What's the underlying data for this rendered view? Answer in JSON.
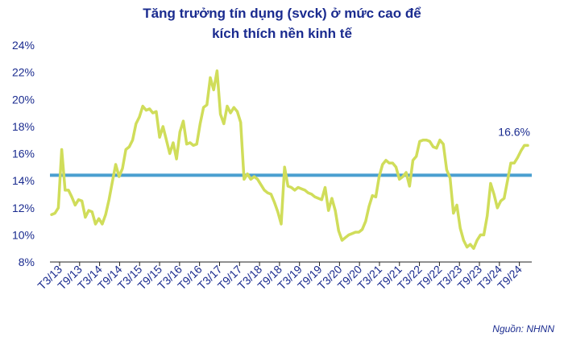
{
  "chart_data": {
    "type": "line",
    "title": "Tăng trưởng tín dụng (svck) ở mức cao để",
    "subtitle": "kích thích nền kinh tế",
    "xlabel": "",
    "ylabel": "",
    "ylim": [
      8,
      24
    ],
    "y_ticks": [
      "8%",
      "10%",
      "12%",
      "14%",
      "16%",
      "18%",
      "20%",
      "22%",
      "24%"
    ],
    "x_tick_labels": [
      "T3/13",
      "T9/13",
      "T3/14",
      "T9/14",
      "T3/15",
      "T9/15",
      "T3/16",
      "T9/16",
      "T3/17",
      "T9/17",
      "T3/18",
      "T9/18",
      "T3/19",
      "T9/19",
      "T3/20",
      "T9/20",
      "T3/21",
      "T9/21",
      "T3/22",
      "T9/22",
      "T3/23",
      "T9/23",
      "T3/24",
      "T9/24"
    ],
    "grid": false,
    "reference_line": {
      "value": 14.4,
      "color": "#4a9fd0"
    },
    "series_color": "#d0dd5a",
    "end_label": "16.6%",
    "series": [
      {
        "values": [
          11.5,
          11.6,
          12.0,
          16.3,
          13.3,
          13.3,
          12.8,
          12.2,
          12.6,
          12.5,
          11.3,
          11.8,
          11.7,
          10.8,
          11.2,
          10.8,
          11.5,
          12.6,
          13.9,
          15.2,
          14.3,
          14.9,
          16.3,
          16.5,
          17.0,
          18.2,
          18.7,
          19.5,
          19.2,
          19.3,
          19.0,
          19.1,
          17.2,
          18.0,
          17.0,
          16.0,
          16.8,
          15.6,
          17.6,
          18.4,
          16.7,
          16.8,
          16.6,
          16.7,
          18.2,
          19.4,
          19.6,
          21.6,
          20.7,
          22.1,
          18.9,
          18.2,
          19.5,
          19.0,
          19.4,
          19.1,
          18.3,
          14.1,
          14.5,
          14.1,
          14.3,
          14.1,
          13.7,
          13.3,
          13.1,
          13.0,
          12.4,
          11.7,
          10.8,
          15.0,
          13.6,
          13.5,
          13.3,
          13.5,
          13.4,
          13.3,
          13.1,
          13.0,
          12.8,
          12.7,
          12.6,
          13.5,
          11.8,
          12.7,
          11.8,
          10.3,
          9.6,
          9.8,
          10.0,
          10.1,
          10.2,
          10.2,
          10.4,
          11.0,
          12.1,
          12.9,
          12.8,
          14.3,
          15.2,
          15.5,
          15.3,
          15.3,
          15.0,
          14.1,
          14.3,
          14.6,
          13.6,
          15.5,
          15.8,
          16.9,
          17.0,
          17.0,
          16.9,
          16.5,
          16.4,
          17.0,
          16.7,
          14.8,
          14.2,
          11.6,
          12.2,
          10.5,
          9.6,
          9.1,
          9.3,
          9.0,
          9.6,
          10.0,
          10.0,
          11.4,
          13.8,
          13.0,
          12.0,
          12.5,
          12.7,
          14.0,
          15.3,
          15.3,
          15.7,
          16.2,
          16.6,
          16.6
        ]
      }
    ]
  }
}
